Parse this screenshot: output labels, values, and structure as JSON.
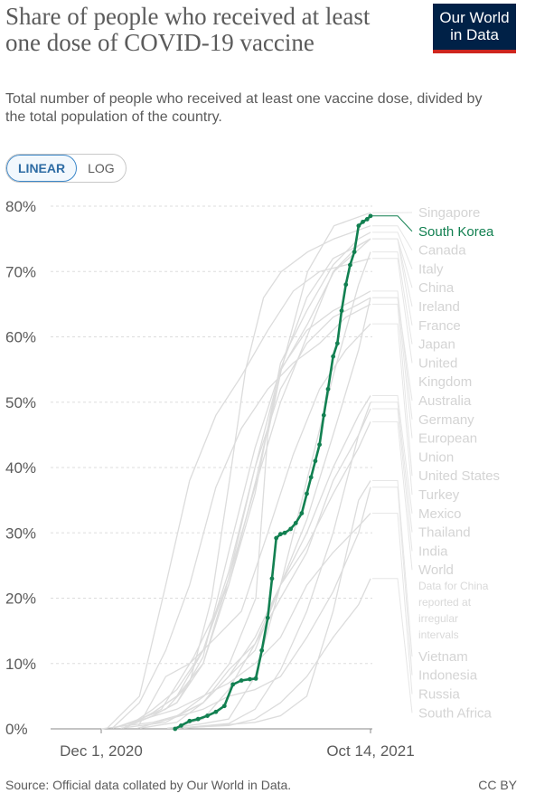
{
  "header": {
    "title": "Share of people who received at least one dose of COVID-19 vaccine",
    "subtitle": "Total number of people who received at least one vaccine dose, divided by the total population of the country.",
    "logo_line1": "Our World",
    "logo_line2": "in Data"
  },
  "toggle": {
    "linear_label": "LINEAR",
    "log_label": "LOG",
    "selected": "LINEAR"
  },
  "footer": {
    "source": "Source: Official data collated by Our World in Data.",
    "license": "CC BY"
  },
  "colors": {
    "highlight": "#128051",
    "background_lines": "#dcdcdc",
    "grid": "#dddddd",
    "axis_text": "#5b5b5b"
  },
  "chart_data": {
    "type": "line",
    "title": "Share of people who received at least one dose of COVID-19 vaccine",
    "ylim": [
      0,
      80
    ],
    "y_ticks": [
      "0%",
      "10%",
      "20%",
      "30%",
      "40%",
      "50%",
      "60%",
      "70%",
      "80%"
    ],
    "y_tick_values": [
      0,
      10,
      20,
      30,
      40,
      50,
      60,
      70,
      80
    ],
    "x_range": [
      "2020-12-01",
      "2021-10-14"
    ],
    "x_tick_labels": [
      "Dec 1, 2020",
      "Oct 14, 2021"
    ],
    "x_tick_dates": [
      "2020-12-01",
      "2021-10-14"
    ],
    "grid": true,
    "legend": "right",
    "highlighted_series": "South Korea",
    "note": "Data for China reported at irregular intervals",
    "series": [
      {
        "name": "Singapore",
        "x": [
          "2021-01-01",
          "2021-02-10",
          "2021-03-20",
          "2021-04-30",
          "2021-06-01",
          "2021-07-01",
          "2021-08-01",
          "2021-09-01",
          "2021-10-14"
        ],
        "values": [
          0.5,
          3,
          11,
          22,
          38,
          55,
          70,
          77,
          79
        ]
      },
      {
        "name": "South Korea",
        "x": [
          "2021-02-26",
          "2021-03-05",
          "2021-03-15",
          "2021-03-25",
          "2021-04-05",
          "2021-04-15",
          "2021-04-25",
          "2021-05-05",
          "2021-05-15",
          "2021-05-25",
          "2021-06-01",
          "2021-06-08",
          "2021-06-15",
          "2021-06-20",
          "2021-06-25",
          "2021-06-30",
          "2021-07-05",
          "2021-07-12",
          "2021-07-18",
          "2021-07-25",
          "2021-07-31",
          "2021-08-05",
          "2021-08-10",
          "2021-08-15",
          "2021-08-20",
          "2021-08-25",
          "2021-08-31",
          "2021-09-05",
          "2021-09-10",
          "2021-09-15",
          "2021-09-20",
          "2021-09-25",
          "2021-09-30",
          "2021-10-05",
          "2021-10-10",
          "2021-10-14"
        ],
        "values": [
          0,
          0.5,
          1.2,
          1.5,
          2,
          2.6,
          3.5,
          6.8,
          7.4,
          7.6,
          7.7,
          12,
          17,
          23,
          29.2,
          29.8,
          30,
          30.6,
          31.5,
          33,
          36,
          38.5,
          41,
          43.5,
          48,
          52,
          57,
          59,
          64,
          68,
          71,
          73,
          77,
          77.6,
          78,
          78.5
        ]
      },
      {
        "name": "Canada",
        "x": [
          "2020-12-15",
          "2021-01-15",
          "2021-02-15",
          "2021-03-15",
          "2021-04-10",
          "2021-05-01",
          "2021-05-20",
          "2021-06-10",
          "2021-07-01",
          "2021-08-01",
          "2021-09-01",
          "2021-10-14"
        ],
        "values": [
          0.1,
          1.5,
          3,
          7,
          20,
          38,
          55,
          66,
          70,
          73,
          75,
          77
        ]
      },
      {
        "name": "Italy",
        "x": [
          "2020-12-27",
          "2021-01-31",
          "2021-02-28",
          "2021-03-31",
          "2021-04-30",
          "2021-05-31",
          "2021-06-30",
          "2021-07-31",
          "2021-08-31",
          "2021-09-30",
          "2021-10-14"
        ],
        "values": [
          0.1,
          2.5,
          5,
          10,
          22,
          36,
          56,
          64,
          71,
          75,
          76
        ]
      },
      {
        "name": "China",
        "x": [
          "2021-03-01",
          "2021-04-01",
          "2021-05-01",
          "2021-06-01",
          "2021-06-15",
          "2021-07-01",
          "2021-08-01",
          "2021-09-01",
          "2021-10-14"
        ],
        "values": [
          2,
          5,
          10,
          20,
          45,
          55,
          62,
          70,
          75
        ]
      },
      {
        "name": "Ireland",
        "x": [
          "2020-12-29",
          "2021-01-31",
          "2021-02-28",
          "2021-03-31",
          "2021-04-30",
          "2021-05-31",
          "2021-06-30",
          "2021-07-31",
          "2021-08-31",
          "2021-09-30",
          "2021-10-14"
        ],
        "values": [
          0.1,
          3,
          6,
          12,
          24,
          40,
          55,
          66,
          72,
          74,
          75
        ]
      },
      {
        "name": "France",
        "x": [
          "2020-12-27",
          "2021-01-31",
          "2021-02-28",
          "2021-03-31",
          "2021-04-30",
          "2021-05-31",
          "2021-06-30",
          "2021-07-31",
          "2021-08-31",
          "2021-09-30",
          "2021-10-14"
        ],
        "values": [
          0.1,
          2.5,
          5,
          12,
          23,
          37,
          50,
          60,
          70,
          74,
          75
        ]
      },
      {
        "name": "Japan",
        "x": [
          "2021-02-17",
          "2021-03-31",
          "2021-04-30",
          "2021-05-31",
          "2021-06-30",
          "2021-07-31",
          "2021-08-31",
          "2021-09-30",
          "2021-10-14"
        ],
        "values": [
          0.1,
          0.8,
          1.5,
          8,
          22,
          38,
          54,
          68,
          73
        ]
      },
      {
        "name": "United Kingdom",
        "x": [
          "2020-12-08",
          "2021-01-15",
          "2021-02-15",
          "2021-03-15",
          "2021-04-15",
          "2021-05-15",
          "2021-06-15",
          "2021-07-15",
          "2021-08-15",
          "2021-09-15",
          "2021-10-14"
        ],
        "values": [
          0.1,
          5,
          22,
          38,
          48,
          54,
          61,
          67,
          70,
          71,
          72
        ]
      },
      {
        "name": "Australia",
        "x": [
          "2021-02-22",
          "2021-03-31",
          "2021-04-30",
          "2021-05-31",
          "2021-06-30",
          "2021-07-31",
          "2021-08-31",
          "2021-09-30",
          "2021-10-14"
        ],
        "values": [
          0.1,
          1.5,
          6,
          13,
          22,
          32,
          45,
          58,
          66
        ]
      },
      {
        "name": "Germany",
        "x": [
          "2020-12-27",
          "2021-01-31",
          "2021-02-28",
          "2021-03-31",
          "2021-04-30",
          "2021-05-31",
          "2021-06-30",
          "2021-07-31",
          "2021-08-31",
          "2021-09-30",
          "2021-10-14"
        ],
        "values": [
          0.1,
          2,
          4,
          11,
          27,
          43,
          55,
          61,
          64,
          66,
          67
        ]
      },
      {
        "name": "European Union",
        "x": [
          "2020-12-27",
          "2021-01-31",
          "2021-02-28",
          "2021-03-31",
          "2021-04-30",
          "2021-05-31",
          "2021-06-30",
          "2021-07-31",
          "2021-08-31",
          "2021-09-30",
          "2021-10-14"
        ],
        "values": [
          0.1,
          2,
          4,
          10,
          23,
          40,
          52,
          59,
          63,
          65,
          66
        ]
      },
      {
        "name": "United States",
        "x": [
          "2020-12-14",
          "2021-01-15",
          "2021-02-15",
          "2021-03-15",
          "2021-04-15",
          "2021-05-15",
          "2021-06-15",
          "2021-07-15",
          "2021-08-15",
          "2021-09-15",
          "2021-10-14"
        ],
        "values": [
          0.1,
          4,
          12,
          22,
          37,
          46,
          52,
          56,
          59,
          63,
          65
        ]
      },
      {
        "name": "Turkey",
        "x": [
          "2021-01-14",
          "2021-02-15",
          "2021-03-15",
          "2021-04-15",
          "2021-05-15",
          "2021-06-15",
          "2021-07-15",
          "2021-08-15",
          "2021-09-15",
          "2021-10-14"
        ],
        "values": [
          0.5,
          8,
          10,
          14,
          18,
          30,
          42,
          52,
          58,
          62
        ]
      },
      {
        "name": "Mexico",
        "x": [
          "2020-12-24",
          "2021-02-15",
          "2021-03-31",
          "2021-04-30",
          "2021-05-31",
          "2021-06-30",
          "2021-07-31",
          "2021-08-31",
          "2021-09-30",
          "2021-10-14"
        ],
        "values": [
          0.1,
          1,
          4,
          8,
          14,
          22,
          30,
          40,
          48,
          51
        ]
      },
      {
        "name": "Thailand",
        "x": [
          "2021-03-01",
          "2021-04-30",
          "2021-05-31",
          "2021-06-30",
          "2021-07-31",
          "2021-08-31",
          "2021-09-30",
          "2021-10-14"
        ],
        "values": [
          0.1,
          0.8,
          3,
          9,
          18,
          30,
          45,
          50
        ]
      },
      {
        "name": "India",
        "x": [
          "2021-01-16",
          "2021-02-28",
          "2021-03-31",
          "2021-04-30",
          "2021-05-31",
          "2021-06-30",
          "2021-07-31",
          "2021-08-31",
          "2021-09-30",
          "2021-10-14"
        ],
        "values": [
          0.1,
          1,
          4,
          9,
          13,
          20,
          27,
          38,
          45,
          49
        ]
      },
      {
        "name": "World",
        "x": [
          "2020-12-01",
          "2021-01-31",
          "2021-02-28",
          "2021-03-31",
          "2021-04-30",
          "2021-05-31",
          "2021-06-30",
          "2021-07-31",
          "2021-08-31",
          "2021-09-30",
          "2021-10-14"
        ],
        "values": [
          0,
          1,
          2,
          4,
          8,
          12,
          22,
          28,
          36,
          43,
          47
        ]
      },
      {
        "name": "Vietnam",
        "x": [
          "2021-03-08",
          "2021-05-31",
          "2021-06-30",
          "2021-07-31",
          "2021-08-31",
          "2021-09-30",
          "2021-10-14"
        ],
        "values": [
          0.1,
          1,
          2,
          5,
          18,
          35,
          38
        ]
      },
      {
        "name": "Indonesia",
        "x": [
          "2021-01-13",
          "2021-03-31",
          "2021-04-30",
          "2021-05-31",
          "2021-06-30",
          "2021-07-31",
          "2021-08-31",
          "2021-09-30",
          "2021-10-14"
        ],
        "values": [
          0.1,
          3,
          5,
          6,
          8,
          14,
          21,
          30,
          37
        ]
      },
      {
        "name": "Russia",
        "x": [
          "2020-12-15",
          "2021-02-28",
          "2021-04-30",
          "2021-05-31",
          "2021-06-30",
          "2021-07-31",
          "2021-08-31",
          "2021-09-30",
          "2021-10-14"
        ],
        "values": [
          0.1,
          3,
          7,
          10,
          14,
          22,
          27,
          31,
          33
        ]
      },
      {
        "name": "South Africa",
        "x": [
          "2021-02-17",
          "2021-04-30",
          "2021-05-31",
          "2021-06-30",
          "2021-07-31",
          "2021-08-31",
          "2021-09-30",
          "2021-10-14"
        ],
        "values": [
          0.1,
          0.5,
          1.5,
          4,
          8,
          14,
          19,
          23
        ]
      }
    ]
  }
}
